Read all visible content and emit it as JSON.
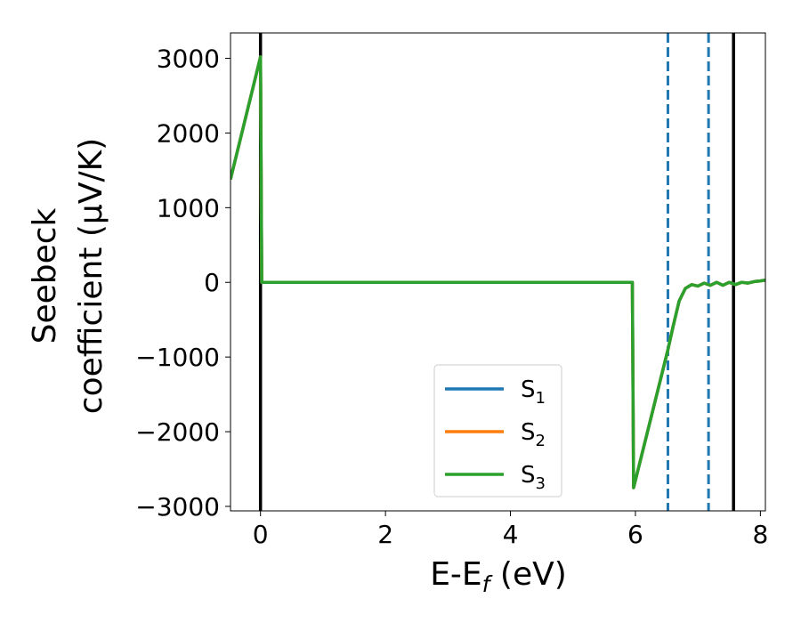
{
  "chart_data": {
    "type": "line",
    "title": "",
    "xlabel": {
      "main": "E-E",
      "sub": "f",
      "suffix": " (eV)"
    },
    "ylabel": {
      "line1": "Seebeck",
      "line2": "coefficient  (μV/K)"
    },
    "xlim": [
      -0.48,
      8.08
    ],
    "ylim": [
      -3060,
      3340
    ],
    "xticks": [
      0,
      2,
      4,
      6,
      8
    ],
    "xtick_labels": [
      "0",
      "2",
      "4",
      "6",
      "8"
    ],
    "yticks": [
      3000,
      2000,
      1000,
      0,
      -1000,
      -2000,
      -3000
    ],
    "ytick_labels": [
      "3000",
      "2000",
      "1000",
      "0",
      "−1000",
      "−2000",
      "−3000"
    ],
    "grid": false,
    "legend_position": "lower-center",
    "series": [
      {
        "name": "S1",
        "label_main": "S",
        "label_sub": "1",
        "color": "#1f77b4",
        "x": [
          -0.48,
          0.0,
          0.02,
          5.95,
          5.97,
          6.52,
          6.6,
          6.7,
          6.8,
          6.9,
          7.0,
          7.1,
          7.2,
          7.3,
          7.4,
          7.5,
          7.6,
          7.7,
          7.8,
          7.9,
          8.0,
          8.08
        ],
        "y": [
          1380,
          3020,
          0,
          0,
          -2750,
          -900,
          -600,
          -250,
          -80,
          -30,
          -50,
          -10,
          -40,
          0,
          -40,
          0,
          -30,
          0,
          -10,
          10,
          20,
          30
        ]
      },
      {
        "name": "S2",
        "label_main": "S",
        "label_sub": "2",
        "color": "#ff7f0e",
        "x": [
          -0.48,
          0.0,
          0.02,
          5.95,
          5.97,
          6.52,
          6.6,
          6.7,
          6.8,
          6.9,
          7.0,
          7.1,
          7.2,
          7.3,
          7.4,
          7.5,
          7.6,
          7.7,
          7.8,
          7.9,
          8.0,
          8.08
        ],
        "y": [
          1380,
          3020,
          0,
          0,
          -2750,
          -900,
          -600,
          -250,
          -80,
          -30,
          -50,
          -10,
          -40,
          0,
          -40,
          0,
          -30,
          0,
          -10,
          10,
          20,
          30
        ]
      },
      {
        "name": "S3",
        "label_main": "S",
        "label_sub": "3",
        "color": "#2ca02c",
        "x": [
          -0.48,
          0.0,
          0.02,
          5.95,
          5.97,
          6.52,
          6.6,
          6.7,
          6.8,
          6.9,
          7.0,
          7.1,
          7.2,
          7.3,
          7.4,
          7.5,
          7.6,
          7.7,
          7.8,
          7.9,
          8.0,
          8.08
        ],
        "y": [
          1380,
          3020,
          0,
          0,
          -2750,
          -900,
          -600,
          -250,
          -80,
          -30,
          -50,
          -10,
          -40,
          0,
          -40,
          0,
          -30,
          0,
          -10,
          10,
          20,
          30
        ]
      }
    ],
    "vertical_lines": [
      {
        "x": 0.0,
        "style": "solid",
        "color": "#000000"
      },
      {
        "x": 7.57,
        "style": "solid",
        "color": "#000000"
      },
      {
        "x": 6.52,
        "style": "dashed",
        "color": "#1f77b4"
      },
      {
        "x": 7.17,
        "style": "dashed",
        "color": "#1f77b4"
      }
    ]
  }
}
